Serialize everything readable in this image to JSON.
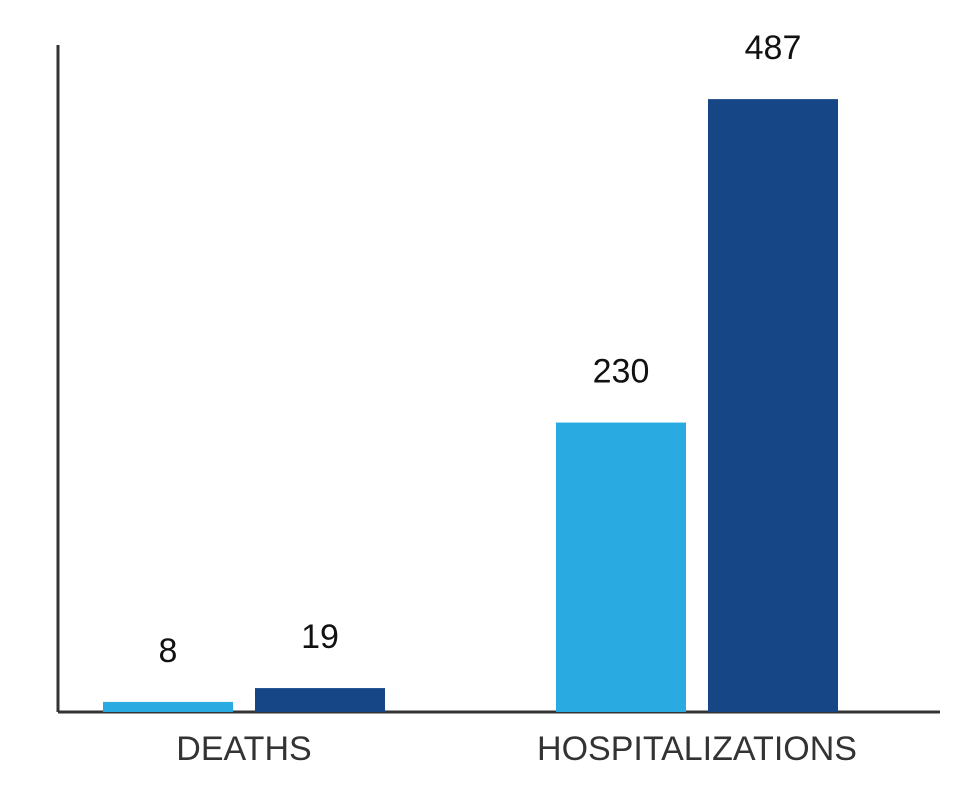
{
  "chart_data": {
    "type": "bar",
    "categories": [
      "DEATHS",
      "HOSPITALIZATIONS"
    ],
    "series": [
      {
        "values": [
          8,
          230
        ],
        "color": "#29ABE2"
      },
      {
        "values": [
          19,
          487
        ],
        "color": "#174687"
      }
    ],
    "data_labels": true,
    "ylim": [
      0,
      530
    ],
    "y_axis_visible": true,
    "y_ticks_visible": false,
    "grid": false,
    "legend": "none"
  }
}
